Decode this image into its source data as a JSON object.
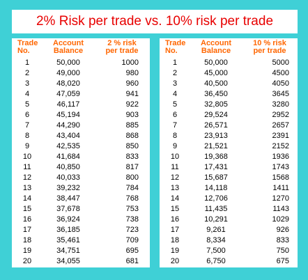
{
  "title": "2% Risk per trade vs. 10% risk per trade",
  "left_table": {
    "headers": [
      [
        "Trade",
        "No."
      ],
      [
        "Account",
        "Balance"
      ],
      [
        "2 % risk",
        "per trade"
      ]
    ],
    "rows": [
      [
        "1",
        "50,000",
        "1000"
      ],
      [
        "2",
        "49,000",
        "980"
      ],
      [
        "3",
        "48,020",
        "960"
      ],
      [
        "4",
        "47,059",
        "941"
      ],
      [
        "5",
        "46,117",
        "922"
      ],
      [
        "6",
        "45,194",
        "903"
      ],
      [
        "7",
        "44,290",
        "885"
      ],
      [
        "8",
        "43,404",
        "868"
      ],
      [
        "9",
        "42,535",
        "850"
      ],
      [
        "10",
        "41,684",
        "833"
      ],
      [
        "11",
        "40,850",
        "817"
      ],
      [
        "12",
        "40,033",
        "800"
      ],
      [
        "13",
        "39,232",
        "784"
      ],
      [
        "14",
        "38,447",
        "768"
      ],
      [
        "15",
        "37,678",
        "753"
      ],
      [
        "16",
        "36,924",
        "738"
      ],
      [
        "17",
        "36,185",
        "723"
      ],
      [
        "18",
        "35,461",
        "709"
      ],
      [
        "19",
        "34,751",
        "695"
      ],
      [
        "20",
        "34,055",
        "681"
      ]
    ]
  },
  "right_table": {
    "headers": [
      [
        "Trade",
        "No."
      ],
      [
        "Account",
        "Balance"
      ],
      [
        "10 % risk",
        "per trade"
      ]
    ],
    "rows": [
      [
        "1",
        "50,000",
        "5000"
      ],
      [
        "2",
        "45,000",
        "4500"
      ],
      [
        "3",
        "40,500",
        "4050"
      ],
      [
        "4",
        "36,450",
        "3645"
      ],
      [
        "5",
        "32,805",
        "3280"
      ],
      [
        "6",
        "29,524",
        "2952"
      ],
      [
        "7",
        "26,571",
        "2657"
      ],
      [
        "8",
        "23,913",
        "2391"
      ],
      [
        "9",
        "21,521",
        "2152"
      ],
      [
        "10",
        "19,368",
        "1936"
      ],
      [
        "11",
        "17,431",
        "1743"
      ],
      [
        "12",
        "15,687",
        "1568"
      ],
      [
        "13",
        "14,118",
        "1411"
      ],
      [
        "14",
        "12,706",
        "1270"
      ],
      [
        "15",
        "11,435",
        "1143"
      ],
      [
        "16",
        "10,291",
        "1029"
      ],
      [
        "17",
        "9,261",
        "926"
      ],
      [
        "18",
        "8,334",
        "833"
      ],
      [
        "19",
        "7,500",
        "750"
      ],
      [
        "20",
        "6,750",
        "675"
      ]
    ]
  },
  "colors": {
    "frame": "#3fd0d6",
    "title_text": "#e80000",
    "header_text": "#ff6600"
  }
}
